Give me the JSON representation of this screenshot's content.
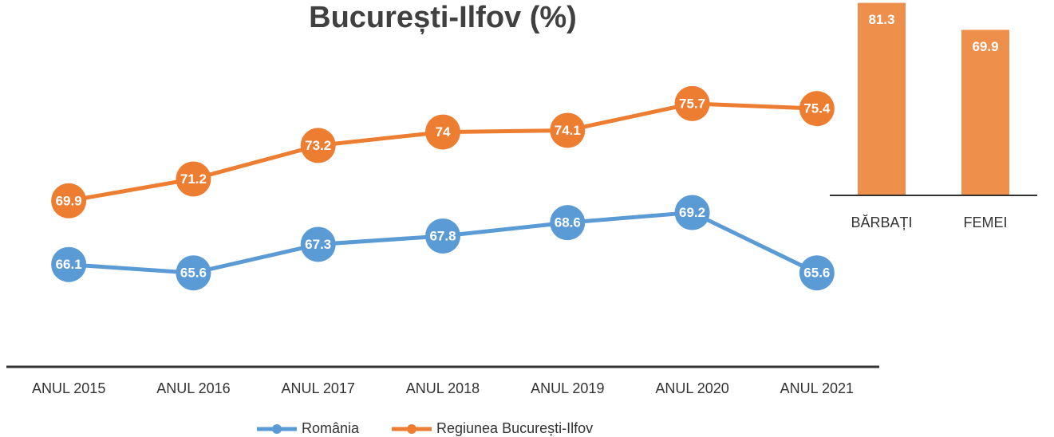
{
  "chart_data": [
    {
      "type": "line",
      "title": "București-Ilfov (%)",
      "categories": [
        "ANUL 2015",
        "ANUL 2016",
        "ANUL 2017",
        "ANUL 2018",
        "ANUL 2019",
        "ANUL 2020",
        "ANUL 2021"
      ],
      "series": [
        {
          "name": "România",
          "color": "#5b9bd5",
          "values": [
            66.1,
            65.6,
            67.3,
            67.8,
            68.6,
            69.2,
            65.6
          ]
        },
        {
          "name": "Regiunea București-Ilfov",
          "color": "#ed7d31",
          "values": [
            69.9,
            71.2,
            73.2,
            74,
            74.1,
            75.7,
            75.4
          ]
        }
      ],
      "ylim": [
        60,
        80
      ],
      "legend": "bottom"
    },
    {
      "type": "bar",
      "categories": [
        "BĂRBAȚI",
        "FEMEI"
      ],
      "values": [
        81.3,
        69.9
      ],
      "color": "#ef8f4c",
      "ylim": [
        0,
        82
      ]
    }
  ]
}
